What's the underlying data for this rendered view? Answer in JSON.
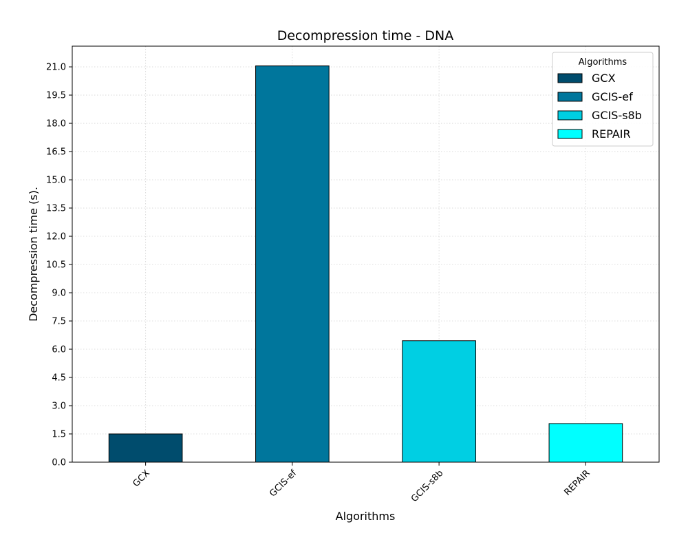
{
  "chart_data": {
    "type": "bar",
    "title": "Decompression time -  DNA",
    "xlabel": "Algorithms",
    "ylabel": "Decompression time (s).",
    "categories": [
      "GCX",
      "GCIS-ef",
      "GCIS-s8b",
      "REPAIR"
    ],
    "values": [
      1.5,
      21.05,
      6.45,
      2.05
    ],
    "colors": [
      "#004c6d",
      "#00769c",
      "#00cfe3",
      "#00ffff"
    ],
    "ylim": [
      0,
      22.1
    ],
    "yticks": [
      "0.0",
      "1.5",
      "3.0",
      "4.5",
      "6.0",
      "7.5",
      "9.0",
      "10.5",
      "12.0",
      "13.5",
      "15.0",
      "16.5",
      "18.0",
      "19.5",
      "21.0"
    ],
    "grid": true,
    "legend": {
      "title": "Algorithms",
      "placement": "top-right",
      "entries": [
        "GCX",
        "GCIS-ef",
        "GCIS-s8b",
        "REPAIR"
      ]
    }
  }
}
